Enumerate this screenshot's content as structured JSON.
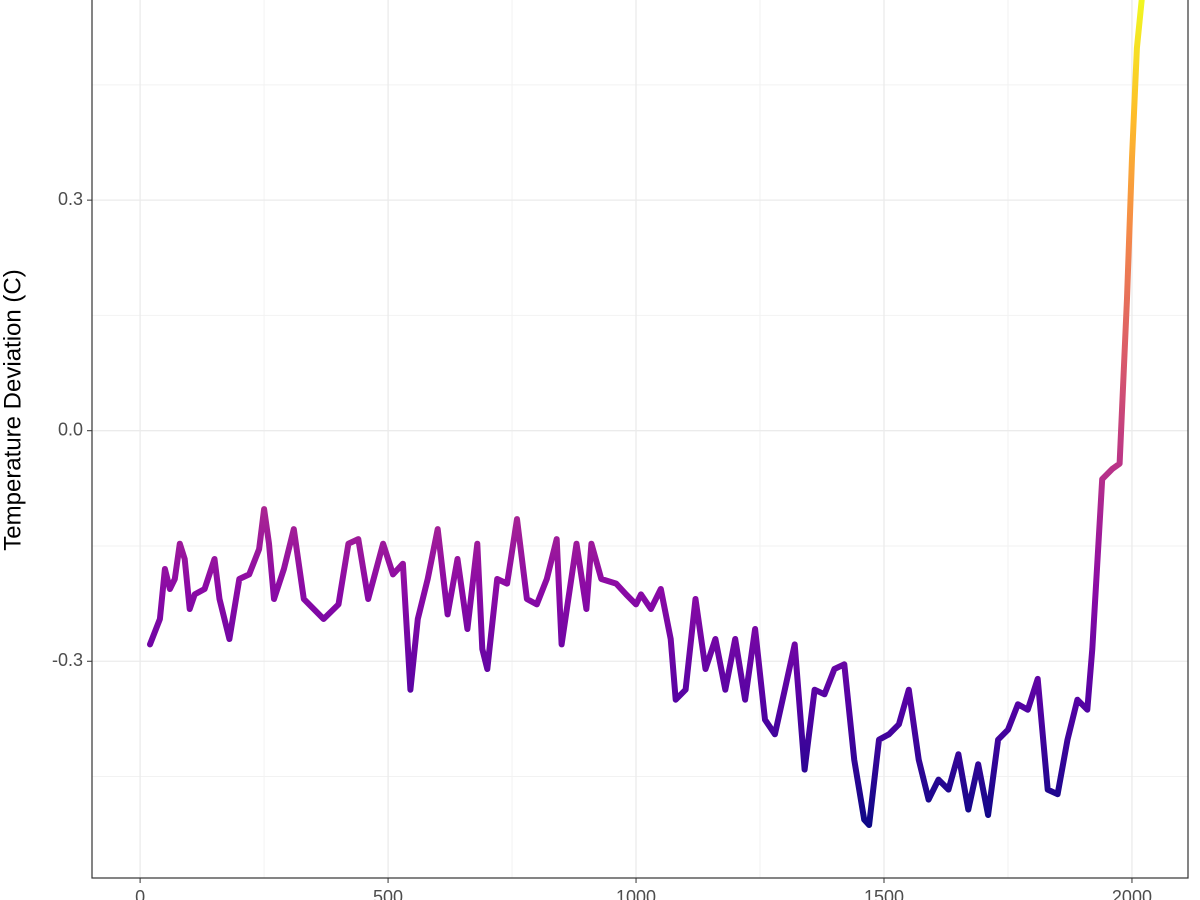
{
  "chart_data": {
    "type": "line",
    "y_label": "Temperature Deviation (C)",
    "x": [
      20,
      40,
      50,
      60,
      70,
      80,
      90,
      100,
      110,
      130,
      150,
      160,
      180,
      200,
      220,
      240,
      250,
      260,
      270,
      290,
      310,
      330,
      350,
      370,
      400,
      420,
      440,
      460,
      490,
      510,
      530,
      545,
      560,
      580,
      600,
      620,
      640,
      660,
      680,
      690,
      700,
      720,
      740,
      760,
      780,
      800,
      820,
      840,
      850,
      880,
      900,
      910,
      930,
      960,
      980,
      1000,
      1010,
      1030,
      1050,
      1070,
      1080,
      1100,
      1120,
      1140,
      1160,
      1180,
      1200,
      1220,
      1240,
      1260,
      1280,
      1300,
      1320,
      1340,
      1360,
      1380,
      1400,
      1420,
      1440,
      1460,
      1470,
      1490,
      1510,
      1530,
      1550,
      1570,
      1590,
      1610,
      1630,
      1650,
      1670,
      1690,
      1710,
      1730,
      1750,
      1770,
      1790,
      1810,
      1830,
      1850,
      1870,
      1890,
      1910,
      1920,
      1940,
      1960,
      1975,
      1990,
      2000,
      2010,
      2020
    ],
    "series": [
      {
        "values": [
          -0.278,
          -0.245,
          -0.18,
          -0.206,
          -0.193,
          -0.147,
          -0.167,
          -0.232,
          -0.213,
          -0.206,
          -0.167,
          -0.219,
          -0.271,
          -0.193,
          -0.187,
          -0.154,
          -0.102,
          -0.147,
          -0.219,
          -0.18,
          -0.128,
          -0.219,
          -0.232,
          -0.245,
          -0.226,
          -0.147,
          -0.141,
          -0.219,
          -0.147,
          -0.187,
          -0.173,
          -0.337,
          -0.245,
          -0.193,
          -0.128,
          -0.239,
          -0.167,
          -0.258,
          -0.147,
          -0.284,
          -0.31,
          -0.193,
          -0.199,
          -0.115,
          -0.219,
          -0.226,
          -0.193,
          -0.141,
          -0.278,
          -0.147,
          -0.232,
          -0.147,
          -0.193,
          -0.199,
          -0.213,
          -0.226,
          -0.213,
          -0.232,
          -0.206,
          -0.271,
          -0.35,
          -0.337,
          -0.219,
          -0.31,
          -0.271,
          -0.337,
          -0.271,
          -0.35,
          -0.258,
          -0.376,
          -0.395,
          -0.337,
          -0.278,
          -0.441,
          -0.337,
          -0.343,
          -0.31,
          -0.304,
          -0.428,
          -0.506,
          -0.513,
          -0.402,
          -0.395,
          -0.382,
          -0.337,
          -0.428,
          -0.48,
          -0.454,
          -0.467,
          -0.421,
          -0.493,
          -0.434,
          -0.5,
          -0.402,
          -0.389,
          -0.356,
          -0.363,
          -0.323,
          -0.467,
          -0.473,
          -0.402,
          -0.35,
          -0.363,
          -0.284,
          -0.063,
          -0.05,
          -0.043,
          0.172,
          0.355,
          0.498,
          0.563
        ]
      }
    ],
    "colormap": [
      "#0d0887",
      "#5302a3",
      "#8b0aa5",
      "#b83289",
      "#db5c68",
      "#f48849",
      "#febd2a",
      "#f0f921"
    ],
    "xlim": [
      -97,
      2113
    ],
    "ylim": [
      -0.582,
      0.563
    ],
    "xticks": [
      0,
      500,
      1000,
      1500,
      2000
    ],
    "yticks": [
      -0.3,
      {
        "value": 0,
        "label": "0.0"
      },
      0.3
    ],
    "grid": true,
    "minor_grid": true
  }
}
